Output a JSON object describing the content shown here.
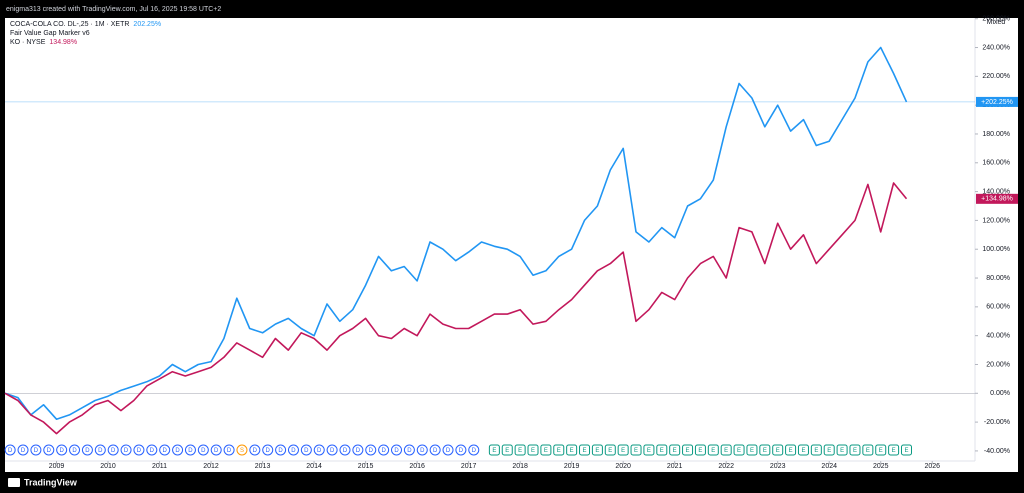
{
  "header": {
    "caption": "enigma313 created with TradingView.com, Jul 16, 2025 19:58 UTC+2"
  },
  "footer": {
    "brand": "TradingView"
  },
  "chart_data": {
    "type": "line",
    "scale_mode": "Mixed",
    "indicator": "Fair Value Gap Marker v6",
    "x": [
      2008,
      2008.25,
      2008.5,
      2008.75,
      2009,
      2009.25,
      2009.5,
      2009.75,
      2010,
      2010.25,
      2010.5,
      2010.75,
      2011,
      2011.25,
      2011.5,
      2011.75,
      2012,
      2012.25,
      2012.5,
      2012.75,
      2013,
      2013.25,
      2013.5,
      2013.75,
      2014,
      2014.25,
      2014.5,
      2014.75,
      2015,
      2015.25,
      2015.5,
      2015.75,
      2016,
      2016.25,
      2016.5,
      2016.75,
      2017,
      2017.25,
      2017.5,
      2017.75,
      2018,
      2018.25,
      2018.5,
      2018.75,
      2019,
      2019.25,
      2019.5,
      2019.75,
      2020,
      2020.25,
      2020.5,
      2020.75,
      2021,
      2021.25,
      2021.5,
      2021.75,
      2022,
      2022.25,
      2022.5,
      2022.75,
      2023,
      2023.25,
      2023.5,
      2023.75,
      2024,
      2024.25,
      2024.5,
      2024.75,
      2025,
      2025.25,
      2025.5
    ],
    "series": [
      {
        "name": "COCA-COLA CO. DL-,25 · 1M · XETR",
        "legend_value": "202.25%",
        "price_tag": "+202.25%",
        "color": "#2196f3",
        "values": [
          0,
          -3,
          -15,
          -8,
          -18,
          -15,
          -10,
          -5,
          -2,
          2,
          5,
          8,
          12,
          20,
          15,
          20,
          22,
          38,
          66,
          45,
          42,
          48,
          52,
          45,
          40,
          62,
          50,
          58,
          75,
          95,
          85,
          88,
          78,
          105,
          100,
          92,
          98,
          105,
          102,
          100,
          95,
          82,
          85,
          95,
          100,
          120,
          130,
          155,
          170,
          112,
          105,
          115,
          108,
          130,
          135,
          148,
          185,
          215,
          205,
          185,
          200,
          182,
          190,
          172,
          175,
          190,
          205,
          230,
          240,
          222,
          202.25
        ]
      },
      {
        "name": "KO · NYSE",
        "legend_value": "134.98%",
        "price_tag": "+134.98%",
        "color": "#c2185b",
        "values": [
          0,
          -5,
          -15,
          -20,
          -28,
          -20,
          -15,
          -8,
          -5,
          -12,
          -5,
          5,
          10,
          15,
          12,
          15,
          18,
          25,
          35,
          30,
          25,
          38,
          30,
          42,
          38,
          30,
          40,
          45,
          52,
          40,
          38,
          45,
          40,
          55,
          48,
          45,
          45,
          50,
          55,
          55,
          58,
          48,
          50,
          58,
          65,
          75,
          85,
          90,
          98,
          50,
          58,
          70,
          65,
          80,
          90,
          95,
          80,
          115,
          112,
          90,
          118,
          100,
          110,
          90,
          100,
          110,
          120,
          145,
          112,
          146,
          134.98
        ]
      }
    ],
    "xlim": [
      2008,
      2026.83
    ],
    "xticks": [
      2009,
      2010,
      2011,
      2012,
      2013,
      2014,
      2015,
      2016,
      2017,
      2018,
      2019,
      2020,
      2021,
      2022,
      2023,
      2024,
      2025,
      2026
    ],
    "ylim": [
      -47,
      260.5
    ],
    "yticks": [
      {
        "value": -40,
        "label": "-40.00%"
      },
      {
        "value": -20,
        "label": "-20.00%"
      },
      {
        "value": 0,
        "label": "0.00%"
      },
      {
        "value": 20,
        "label": "20.00%"
      },
      {
        "value": 40,
        "label": "40.00%"
      },
      {
        "value": 60,
        "label": "60.00%"
      },
      {
        "value": 80,
        "label": "80.00%"
      },
      {
        "value": 100,
        "label": "100.00%"
      },
      {
        "value": 120,
        "label": "120.00%"
      },
      {
        "value": 140,
        "label": "140.00%"
      },
      {
        "value": 160,
        "label": "160.00%"
      },
      {
        "value": 180,
        "label": "180.00%"
      },
      {
        "value": 200,
        "label": "200.00%"
      },
      {
        "value": 220,
        "label": "220.00%"
      },
      {
        "value": 240,
        "label": "240.00%"
      },
      {
        "value": 260,
        "label": "260.00%"
      }
    ],
    "events": [
      {
        "label": "D",
        "color": "#2962ff",
        "x": [
          2008.1,
          2008.35,
          2008.6,
          2008.85,
          2009.1,
          2009.35,
          2009.6,
          2009.85,
          2010.1,
          2010.35,
          2010.6,
          2010.85,
          2011.1,
          2011.35,
          2011.6,
          2011.85,
          2012.1,
          2012.35,
          2012.85,
          2013.1,
          2013.35,
          2013.6,
          2013.85,
          2014.1,
          2014.35,
          2014.6,
          2014.85,
          2015.1,
          2015.35,
          2015.6,
          2015.85,
          2016.1,
          2016.35,
          2016.6,
          2016.85,
          2017.1
        ]
      },
      {
        "label": "S",
        "color": "#ff9800",
        "x": [
          2012.6
        ]
      },
      {
        "label": "E",
        "color": "#089981",
        "x": [
          2017.5,
          2017.75,
          2018,
          2018.25,
          2018.5,
          2018.75,
          2019,
          2019.25,
          2019.5,
          2019.75,
          2020,
          2020.25,
          2020.5,
          2020.75,
          2021,
          2021.25,
          2021.5,
          2021.75,
          2022,
          2022.25,
          2022.5,
          2022.75,
          2023,
          2023.25,
          2023.5,
          2023.75,
          2024,
          2024.25,
          2024.5,
          2024.75,
          2025,
          2025.25,
          2025.5
        ]
      }
    ]
  }
}
